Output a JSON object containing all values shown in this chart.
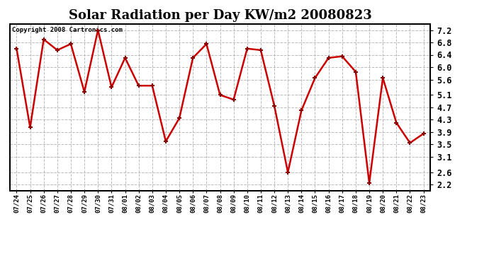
{
  "title": "Solar Radiation per Day KW/m2 20080823",
  "copyright_text": "Copyright 2008 Cartronics.com",
  "x_labels": [
    "07/24",
    "07/25",
    "07/26",
    "07/27",
    "07/28",
    "07/29",
    "07/30",
    "07/31",
    "08/01",
    "08/02",
    "08/03",
    "08/04",
    "08/05",
    "08/06",
    "08/07",
    "08/08",
    "08/09",
    "08/10",
    "08/11",
    "08/12",
    "08/13",
    "08/14",
    "08/15",
    "08/16",
    "08/17",
    "08/18",
    "08/19",
    "08/20",
    "08/21",
    "08/22",
    "08/23"
  ],
  "y_values": [
    6.6,
    4.05,
    6.9,
    6.55,
    6.75,
    5.2,
    7.2,
    5.35,
    6.3,
    5.4,
    5.4,
    3.6,
    4.35,
    6.3,
    6.75,
    5.1,
    4.95,
    6.6,
    6.55,
    4.75,
    2.6,
    4.6,
    5.65,
    6.3,
    6.35,
    5.85,
    2.25,
    5.65,
    4.2,
    3.55,
    3.85
  ],
  "line_color": "#cc0000",
  "marker_color": "#880000",
  "background_color": "#ffffff",
  "grid_color": "#aaaaaa",
  "title_fontsize": 13,
  "ylim": [
    2.0,
    7.4
  ],
  "yticks": [
    2.2,
    2.6,
    3.1,
    3.5,
    3.9,
    4.3,
    4.7,
    5.1,
    5.6,
    6.0,
    6.4,
    6.8,
    7.2
  ]
}
